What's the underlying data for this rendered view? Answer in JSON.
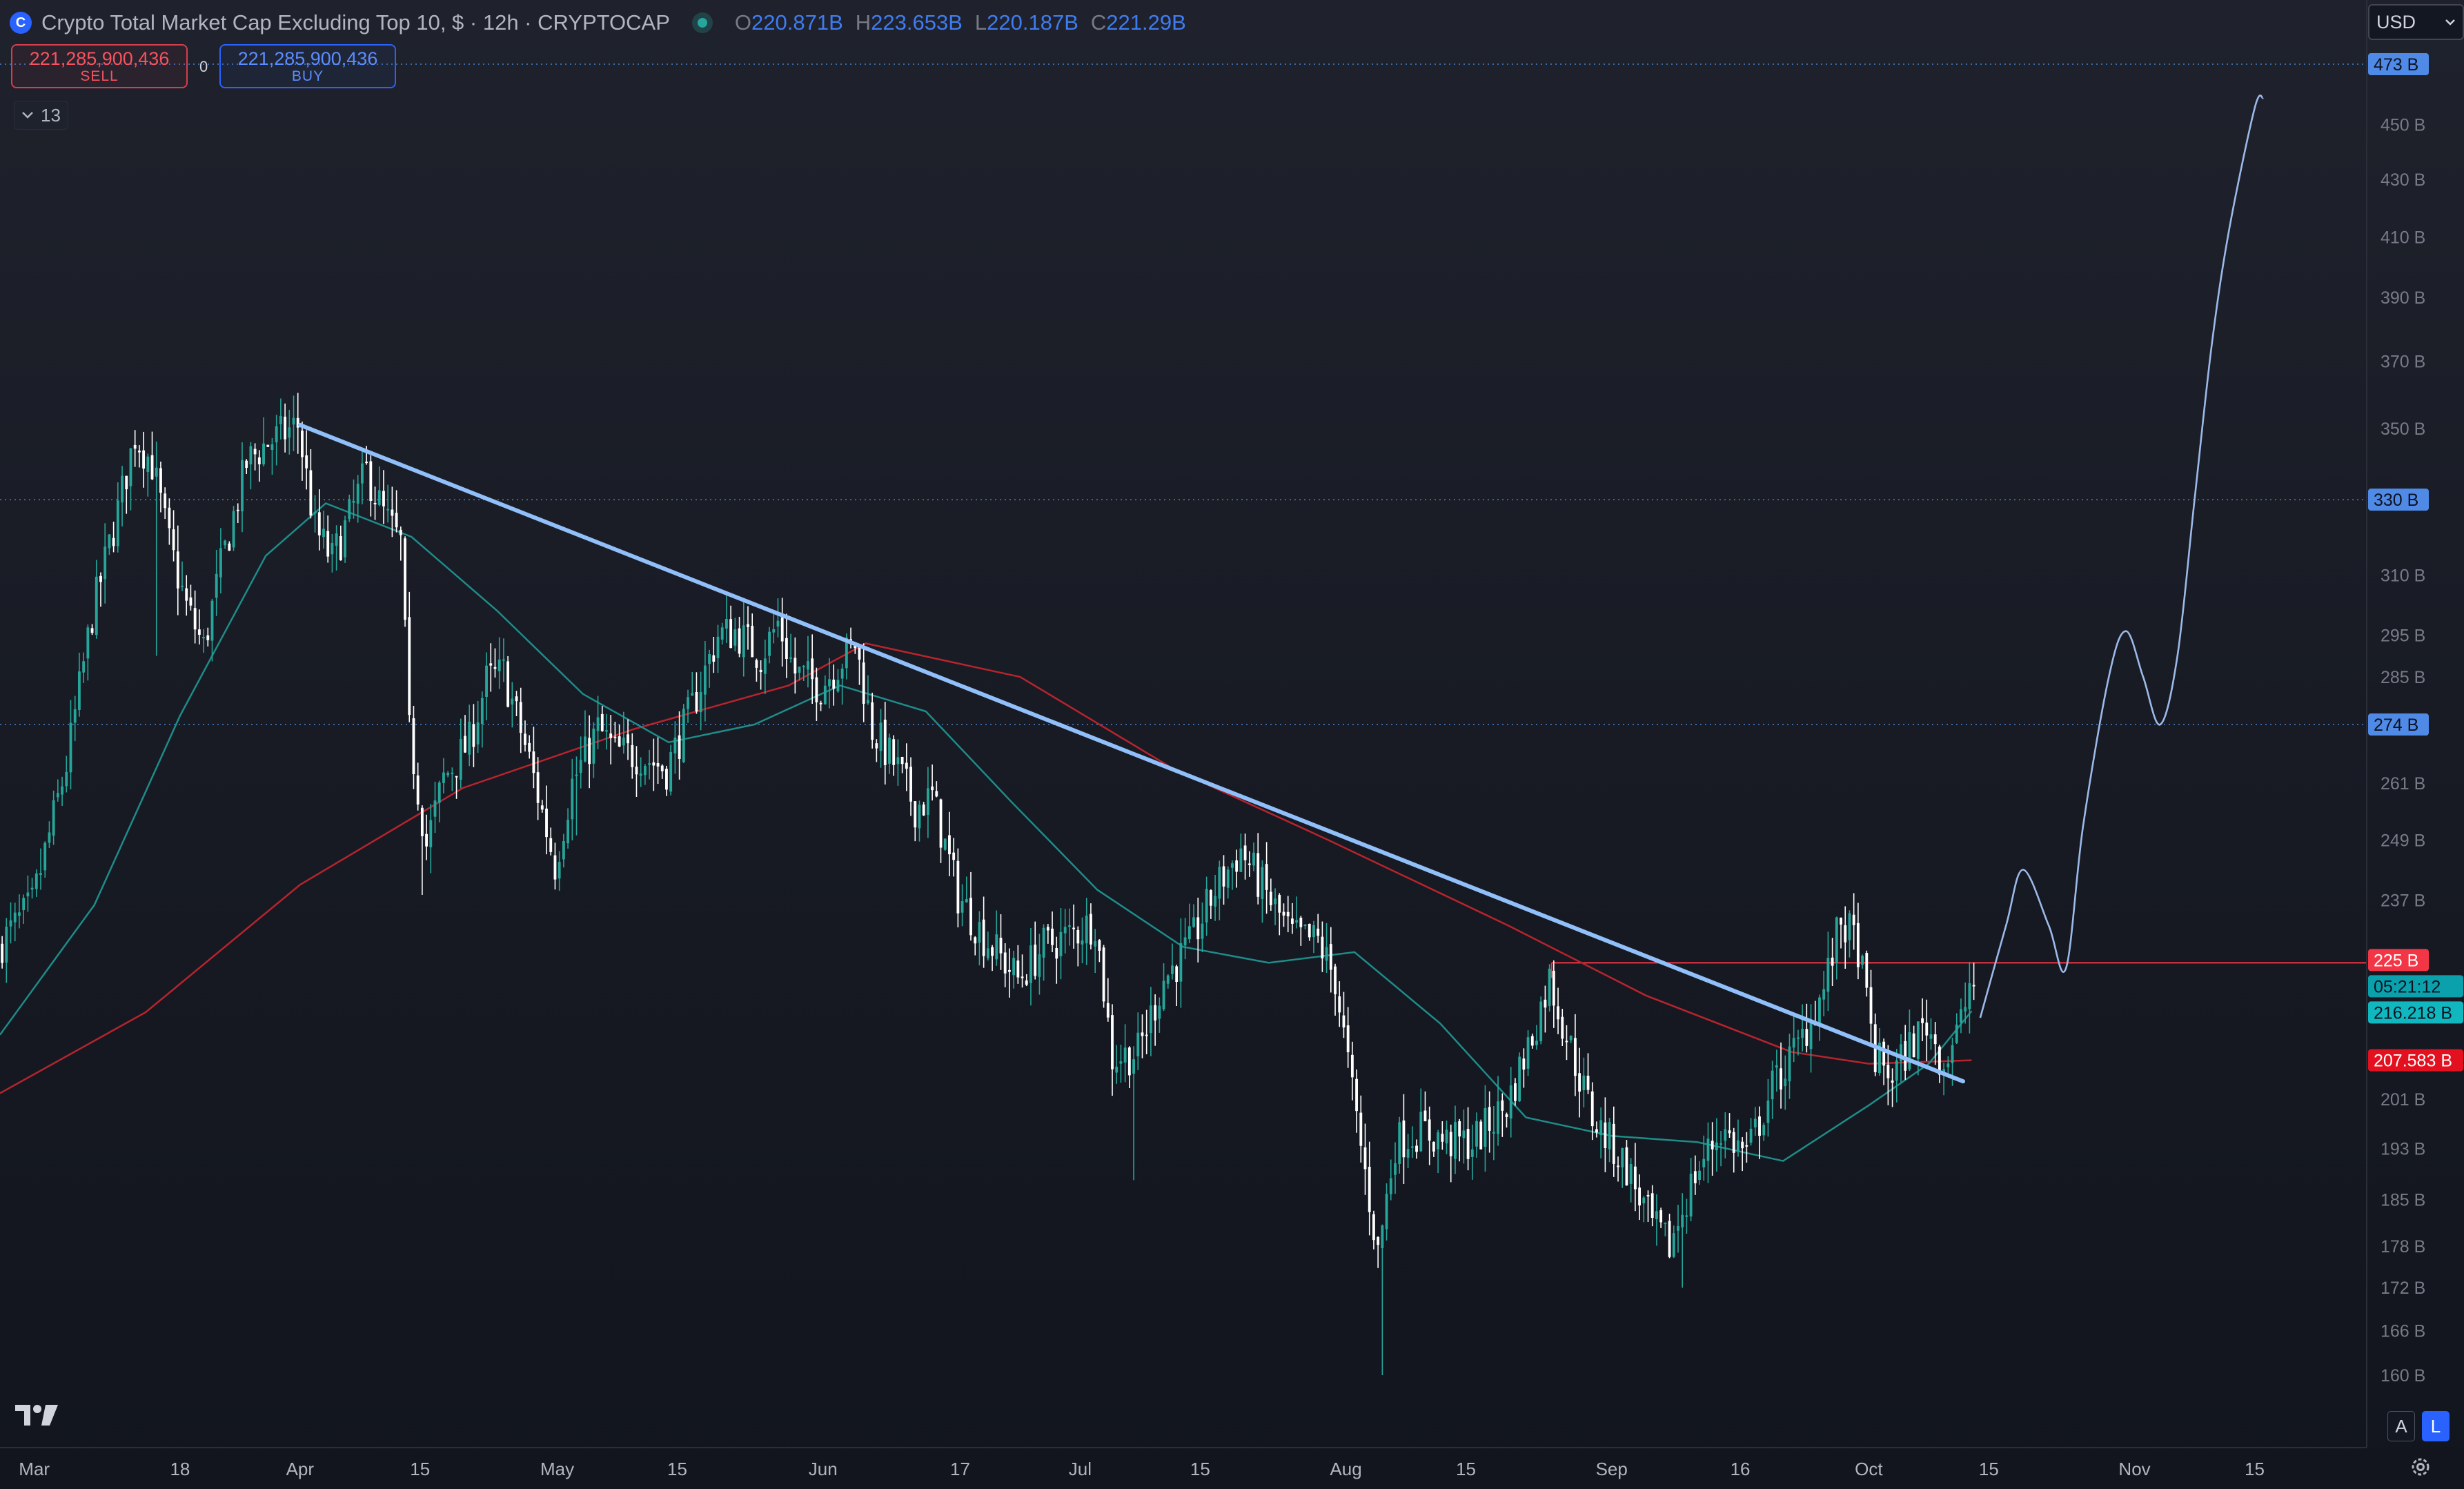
{
  "header": {
    "symbol_logo": "C",
    "title": "Crypto Total Market Cap Excluding Top 10, $ · 12h · CRYPTOCAP",
    "ohlc": {
      "o_label": "O",
      "o": "220.871B",
      "h_label": "H",
      "h": "223.653B",
      "l_label": "L",
      "l": "220.187B",
      "c_label": "C",
      "c": "221.29B"
    }
  },
  "trade": {
    "sell_price": "221,285,900,436",
    "sell_label": "SELL",
    "buy_price": "221,285,900,436",
    "buy_label": "BUY",
    "spread": "0"
  },
  "indicators_toggle": {
    "icon": "chevron-down-icon",
    "count": "13"
  },
  "currency_select": {
    "value": "USD",
    "icon": "chevron-down-icon"
  },
  "mode_buttons": {
    "auto": "A",
    "log": "L"
  },
  "colors": {
    "up": "#26a69a",
    "down": "#ffffff",
    "trendline": "#90bff9",
    "ma_fast": "#1e8c89",
    "ma_slow": "#b7242d",
    "resistance": "#f23645",
    "hline": "#3b6aa8",
    "projection": "#9cb9e8"
  },
  "chart_data": {
    "type": "candlestick",
    "log_scale": true,
    "grid": false,
    "y_unit": "B",
    "ylim": [
      154,
      492
    ],
    "xlim": [
      "2024-02-26",
      "2024-11-28"
    ],
    "x_ticks": [
      {
        "date": "2024-03-01",
        "label": "Mar"
      },
      {
        "date": "2024-03-18",
        "label": "18"
      },
      {
        "date": "2024-04-01",
        "label": "Apr"
      },
      {
        "date": "2024-04-15",
        "label": "15"
      },
      {
        "date": "2024-05-01",
        "label": "May"
      },
      {
        "date": "2024-05-15",
        "label": "15"
      },
      {
        "date": "2024-06-01",
        "label": "Jun"
      },
      {
        "date": "2024-06-17",
        "label": "17"
      },
      {
        "date": "2024-07-01",
        "label": "Jul"
      },
      {
        "date": "2024-07-15",
        "label": "15"
      },
      {
        "date": "2024-08-01",
        "label": "Aug"
      },
      {
        "date": "2024-08-15",
        "label": "15"
      },
      {
        "date": "2024-09-01",
        "label": "Sep"
      },
      {
        "date": "2024-09-16",
        "label": "16"
      },
      {
        "date": "2024-10-01",
        "label": "Oct"
      },
      {
        "date": "2024-10-15",
        "label": "15"
      },
      {
        "date": "2024-11-01",
        "label": "Nov"
      },
      {
        "date": "2024-11-15",
        "label": "15"
      }
    ],
    "y_ticks": [
      {
        "v": 160,
        "label": "160 B"
      },
      {
        "v": 166,
        "label": "166 B"
      },
      {
        "v": 172,
        "label": "172 B"
      },
      {
        "v": 178,
        "label": "178 B"
      },
      {
        "v": 185,
        "label": "185 B"
      },
      {
        "v": 193,
        "label": "193 B"
      },
      {
        "v": 201,
        "label": "201 B"
      },
      {
        "v": 237,
        "label": "237 B"
      },
      {
        "v": 249,
        "label": "249 B"
      },
      {
        "v": 261,
        "label": "261 B"
      },
      {
        "v": 285,
        "label": "285 B"
      },
      {
        "v": 295,
        "label": "295 B"
      },
      {
        "v": 310,
        "label": "310 B"
      },
      {
        "v": 350,
        "label": "350 B"
      },
      {
        "v": 370,
        "label": "370 B"
      },
      {
        "v": 390,
        "label": "390 B"
      },
      {
        "v": 410,
        "label": "410 B"
      },
      {
        "v": 430,
        "label": "430 B"
      },
      {
        "v": 450,
        "label": "450 B"
      }
    ],
    "price_labels": [
      {
        "v": 473,
        "label": "473 B",
        "kind": "hline"
      },
      {
        "v": 330,
        "label": "330 B",
        "kind": "hline"
      },
      {
        "v": 274,
        "label": "274 B",
        "kind": "hline"
      },
      {
        "v": 225,
        "label": "225 B",
        "kind": "resistance"
      },
      {
        "v": 221.29,
        "label": "05:21:12",
        "kind": "countdown"
      },
      {
        "v": 216.218,
        "label": "216.218 B",
        "kind": "ma_fast"
      },
      {
        "v": 207.583,
        "label": "207.583 B",
        "kind": "ma_slow"
      }
    ],
    "horizontal_lines": [
      473,
      330,
      274
    ],
    "resistance": {
      "from": "2024-08-25",
      "v": 225
    },
    "trendline": {
      "start": {
        "date": "2024-04-01",
        "v": 351
      },
      "end": {
        "date": "2024-10-12",
        "v": 204
      }
    },
    "price_path": [
      [
        "2024-02-26",
        228
      ],
      [
        "2024-03-01",
        236
      ],
      [
        "2024-03-05",
        265
      ],
      [
        "2024-03-08",
        300
      ],
      [
        "2024-03-11",
        327
      ],
      [
        "2024-03-13",
        348
      ],
      [
        "2024-03-15",
        340
      ],
      [
        "2024-03-17",
        318
      ],
      [
        "2024-03-19",
        302
      ],
      [
        "2024-03-21",
        292
      ],
      [
        "2024-03-23",
        312
      ],
      [
        "2024-03-26",
        340
      ],
      [
        "2024-03-28",
        345
      ],
      [
        "2024-04-01",
        351
      ],
      [
        "2024-04-03",
        322
      ],
      [
        "2024-04-05",
        314
      ],
      [
        "2024-04-07",
        325
      ],
      [
        "2024-04-09",
        338
      ],
      [
        "2024-04-11",
        326
      ],
      [
        "2024-04-13",
        318
      ],
      [
        "2024-04-14",
        272
      ],
      [
        "2024-04-16",
        248
      ],
      [
        "2024-04-18",
        262
      ],
      [
        "2024-04-21",
        270
      ],
      [
        "2024-04-23",
        284
      ],
      [
        "2024-04-25",
        286
      ],
      [
        "2024-04-28",
        266
      ],
      [
        "2024-05-01",
        244
      ],
      [
        "2024-05-03",
        261
      ],
      [
        "2024-05-06",
        273
      ],
      [
        "2024-05-08",
        268
      ],
      [
        "2024-05-11",
        267
      ],
      [
        "2024-05-14",
        264
      ],
      [
        "2024-05-17",
        278
      ],
      [
        "2024-05-20",
        295
      ],
      [
        "2024-05-22",
        296
      ],
      [
        "2024-05-25",
        290
      ],
      [
        "2024-05-27",
        298
      ],
      [
        "2024-05-29",
        286
      ],
      [
        "2024-06-01",
        283
      ],
      [
        "2024-06-03",
        288
      ],
      [
        "2024-06-05",
        293
      ],
      [
        "2024-06-07",
        273
      ],
      [
        "2024-06-10",
        264
      ],
      [
        "2024-06-12",
        256
      ],
      [
        "2024-06-14",
        258
      ],
      [
        "2024-06-17",
        238
      ],
      [
        "2024-06-20",
        230
      ],
      [
        "2024-06-24",
        222
      ],
      [
        "2024-06-27",
        228
      ],
      [
        "2024-07-01",
        231
      ],
      [
        "2024-07-03",
        233
      ],
      [
        "2024-07-05",
        208
      ],
      [
        "2024-07-08",
        209
      ],
      [
        "2024-07-11",
        222
      ],
      [
        "2024-07-14",
        228
      ],
      [
        "2024-07-17",
        239
      ],
      [
        "2024-07-20",
        247
      ],
      [
        "2024-07-23",
        238
      ],
      [
        "2024-07-26",
        230
      ],
      [
        "2024-07-29",
        229
      ],
      [
        "2024-07-31",
        222
      ],
      [
        "2024-08-02",
        202
      ],
      [
        "2024-08-05",
        177
      ],
      [
        "2024-08-07",
        194
      ],
      [
        "2024-08-10",
        196
      ],
      [
        "2024-08-13",
        194
      ],
      [
        "2024-08-16",
        194
      ],
      [
        "2024-08-20",
        200
      ],
      [
        "2024-08-23",
        212
      ],
      [
        "2024-08-25",
        222
      ],
      [
        "2024-08-27",
        212
      ],
      [
        "2024-08-30",
        198
      ],
      [
        "2024-09-03",
        190
      ],
      [
        "2024-09-06",
        181
      ],
      [
        "2024-09-08",
        178
      ],
      [
        "2024-09-11",
        189
      ],
      [
        "2024-09-14",
        196
      ],
      [
        "2024-09-17",
        192
      ],
      [
        "2024-09-20",
        203
      ],
      [
        "2024-09-23",
        210
      ],
      [
        "2024-09-26",
        220
      ],
      [
        "2024-09-28",
        233
      ],
      [
        "2024-09-30",
        228
      ],
      [
        "2024-10-02",
        208
      ],
      [
        "2024-10-04",
        205
      ],
      [
        "2024-10-06",
        210
      ],
      [
        "2024-10-08",
        214
      ],
      [
        "2024-10-10",
        207
      ],
      [
        "2024-10-12",
        214
      ],
      [
        "2024-10-13",
        221
      ]
    ],
    "ma_fast": [
      [
        "2024-02-26",
        212
      ],
      [
        "2024-03-08",
        236
      ],
      [
        "2024-03-18",
        276
      ],
      [
        "2024-03-28",
        315
      ],
      [
        "2024-04-04",
        329
      ],
      [
        "2024-04-14",
        320
      ],
      [
        "2024-04-24",
        301
      ],
      [
        "2024-05-04",
        281
      ],
      [
        "2024-05-14",
        270
      ],
      [
        "2024-05-24",
        274
      ],
      [
        "2024-06-03",
        283
      ],
      [
        "2024-06-13",
        277
      ],
      [
        "2024-06-23",
        257
      ],
      [
        "2024-07-03",
        239
      ],
      [
        "2024-07-13",
        228
      ],
      [
        "2024-07-23",
        225
      ],
      [
        "2024-08-02",
        227
      ],
      [
        "2024-08-12",
        214
      ],
      [
        "2024-08-22",
        198
      ],
      [
        "2024-09-01",
        195
      ],
      [
        "2024-09-11",
        194
      ],
      [
        "2024-09-21",
        191
      ],
      [
        "2024-10-01",
        200
      ],
      [
        "2024-10-08",
        207
      ],
      [
        "2024-10-13",
        216.218
      ]
    ],
    "ma_slow": [
      [
        "2024-02-26",
        202
      ],
      [
        "2024-03-14",
        216
      ],
      [
        "2024-04-01",
        240
      ],
      [
        "2024-04-20",
        260
      ],
      [
        "2024-05-10",
        273
      ],
      [
        "2024-05-28",
        283
      ],
      [
        "2024-06-06",
        293
      ],
      [
        "2024-06-24",
        285
      ],
      [
        "2024-07-12",
        264
      ],
      [
        "2024-07-30",
        249
      ],
      [
        "2024-08-20",
        232
      ],
      [
        "2024-09-05",
        219
      ],
      [
        "2024-09-22",
        209
      ],
      [
        "2024-10-01",
        207
      ],
      [
        "2024-10-13",
        207.583
      ]
    ],
    "projection": [
      [
        "2024-10-14",
        215
      ],
      [
        "2024-10-17",
        232
      ],
      [
        "2024-10-19",
        243
      ],
      [
        "2024-10-22",
        232
      ],
      [
        "2024-10-24",
        224
      ],
      [
        "2024-10-26",
        252
      ],
      [
        "2024-10-29",
        285
      ],
      [
        "2024-10-31",
        296
      ],
      [
        "2024-11-02",
        285
      ],
      [
        "2024-11-04",
        274
      ],
      [
        "2024-11-06",
        290
      ],
      [
        "2024-11-08",
        330
      ],
      [
        "2024-11-10",
        375
      ],
      [
        "2024-11-12",
        412
      ],
      [
        "2024-11-15",
        456
      ],
      [
        "2024-11-16",
        460
      ]
    ]
  }
}
